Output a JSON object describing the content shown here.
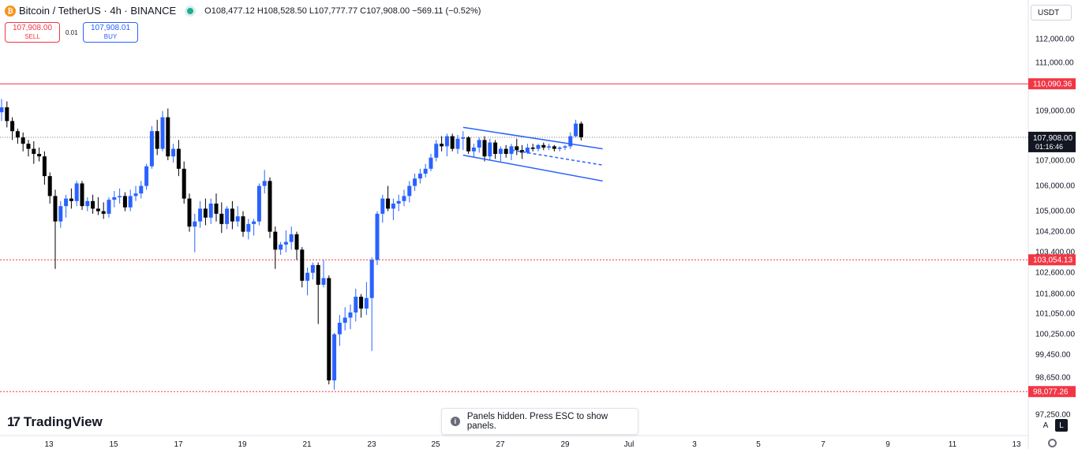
{
  "header": {
    "symbol_title": "Bitcoin / TetherUS · 4h · BINANCE",
    "coin_icon": "bitcoin-icon",
    "ohlc": "O108,477.12 H108,528.50 L107,777.77 C107,908.00 −569.11 (−0.52%)"
  },
  "trade": {
    "sell_price": "107,908.00",
    "sell_label": "SELL",
    "spread": "0.01",
    "buy_price": "107,908.01",
    "buy_label": "BUY"
  },
  "currency_selector": "USDT",
  "brand": "TradingView",
  "toast": {
    "icon": "info-icon",
    "text": "Panels hidden. Press ESC to show panels."
  },
  "axis_buttons": {
    "auto": "A",
    "log": "L"
  },
  "colors": {
    "up": "#2962ff",
    "down": "#000000",
    "level": "#f23645",
    "channel": "#2962ff"
  },
  "chart_data": {
    "type": "candlestick",
    "timeframe": "4h",
    "x_ticks": [
      "13",
      "15",
      "17",
      "19",
      "21",
      "23",
      "25",
      "27",
      "29",
      "Jul",
      "3",
      "5",
      "7",
      "9",
      "11",
      "13"
    ],
    "y_ticks": [
      "112,000.00",
      "111,000.00",
      "109,000.00",
      "107,000.00",
      "106,000.00",
      "105,000.00",
      "104,200.00",
      "103,400.00",
      "102,600.00",
      "101,800.00",
      "101,050.00",
      "100,250.00",
      "99,450.00",
      "98,650.00",
      "97,250.00"
    ],
    "price_labels": [
      {
        "value": "110,090.36",
        "style": "level"
      },
      {
        "value": "103,054.13",
        "style": "level"
      },
      {
        "value": "98,077.26",
        "style": "level"
      },
      {
        "value": "107,908.00",
        "countdown": "01:16:46",
        "style": "current"
      }
    ],
    "horizontal_levels": [
      {
        "price": 110090.36,
        "style": "solid"
      },
      {
        "price": 103054.13,
        "style": "dotted"
      },
      {
        "price": 98077.26,
        "style": "dotted"
      }
    ],
    "current_price": 107908.0,
    "candles": [
      [
        108900,
        109450,
        108550,
        109100
      ],
      [
        109100,
        109350,
        108300,
        108550
      ],
      [
        108550,
        108700,
        107800,
        108150
      ],
      [
        108150,
        108250,
        107650,
        107900
      ],
      [
        107900,
        108100,
        107350,
        107650
      ],
      [
        107650,
        107800,
        107150,
        107450
      ],
      [
        107450,
        107750,
        106850,
        107250
      ],
      [
        107250,
        107500,
        106950,
        107150
      ],
      [
        107150,
        107350,
        106000,
        106350
      ],
      [
        106350,
        106500,
        105250,
        105550
      ],
      [
        105550,
        105800,
        102700,
        104550
      ],
      [
        104550,
        105350,
        104300,
        105150
      ],
      [
        105150,
        105600,
        104700,
        105450
      ],
      [
        105450,
        105850,
        105050,
        105350
      ],
      [
        105350,
        106150,
        105150,
        106050
      ],
      [
        106050,
        106150,
        105000,
        105150
      ],
      [
        105150,
        105500,
        104950,
        105350
      ],
      [
        105350,
        105600,
        104850,
        105050
      ],
      [
        105050,
        105500,
        104800,
        104950
      ],
      [
        104950,
        105300,
        104650,
        104850
      ],
      [
        104850,
        105500,
        104700,
        105400
      ],
      [
        105400,
        105750,
        105100,
        105500
      ],
      [
        105500,
        105850,
        105250,
        105550
      ],
      [
        105550,
        105700,
        104950,
        105100
      ],
      [
        105100,
        105800,
        104950,
        105550
      ],
      [
        105550,
        105950,
        105350,
        105650
      ],
      [
        105650,
        106150,
        105450,
        105950
      ],
      [
        105950,
        106850,
        105800,
        106750
      ],
      [
        106750,
        108350,
        106650,
        108150
      ],
      [
        108150,
        108600,
        107200,
        107450
      ],
      [
        107450,
        108950,
        107350,
        108700
      ],
      [
        108700,
        109050,
        107000,
        107150
      ],
      [
        107150,
        107650,
        106900,
        107450
      ],
      [
        107450,
        107800,
        106350,
        106650
      ],
      [
        106650,
        106950,
        105250,
        105450
      ],
      [
        105450,
        105650,
        104150,
        104350
      ],
      [
        104350,
        104850,
        103350,
        104550
      ],
      [
        104550,
        105350,
        104300,
        105050
      ],
      [
        105050,
        105450,
        104400,
        104700
      ],
      [
        104700,
        105450,
        104450,
        105250
      ],
      [
        105250,
        105650,
        104550,
        104850
      ],
      [
        104850,
        105300,
        104100,
        104450
      ],
      [
        104450,
        105150,
        104250,
        105050
      ],
      [
        105050,
        105350,
        104250,
        104550
      ],
      [
        104550,
        105150,
        104350,
        104750
      ],
      [
        104750,
        104950,
        103950,
        104150
      ],
      [
        104150,
        104650,
        103850,
        104450
      ],
      [
        104450,
        104650,
        104000,
        104550
      ],
      [
        104550,
        106050,
        104400,
        105950
      ],
      [
        105950,
        106600,
        105650,
        106150
      ],
      [
        106150,
        106300,
        103900,
        104150
      ],
      [
        104150,
        104350,
        102700,
        103450
      ],
      [
        103450,
        103750,
        103250,
        103650
      ],
      [
        103650,
        104200,
        103350,
        103750
      ],
      [
        103750,
        104350,
        103450,
        104050
      ],
      [
        104050,
        104150,
        103050,
        103450
      ],
      [
        103450,
        103550,
        102000,
        102250
      ],
      [
        102250,
        102750,
        101700,
        102550
      ],
      [
        102550,
        102950,
        102300,
        102850
      ],
      [
        102850,
        102950,
        100600,
        102100
      ],
      [
        102100,
        103050,
        102000,
        102350
      ],
      [
        102350,
        102450,
        98350,
        98500
      ],
      [
        98500,
        100250,
        98150,
        100200
      ],
      [
        100200,
        100950,
        99750,
        100650
      ],
      [
        100650,
        101250,
        100350,
        100850
      ],
      [
        100850,
        101350,
        100400,
        101050
      ],
      [
        101050,
        101950,
        100700,
        101650
      ],
      [
        101650,
        101750,
        100850,
        101200
      ],
      [
        101200,
        102200,
        100950,
        101600
      ],
      [
        101600,
        103150,
        99550,
        103050
      ],
      [
        103050,
        104950,
        102850,
        104850
      ],
      [
        104850,
        105600,
        104500,
        105450
      ],
      [
        105450,
        105950,
        104950,
        105050
      ],
      [
        105050,
        105450,
        104600,
        105250
      ],
      [
        105250,
        105600,
        104950,
        105350
      ],
      [
        105350,
        105800,
        105150,
        105550
      ],
      [
        105550,
        106150,
        105300,
        105950
      ],
      [
        105950,
        106450,
        105750,
        106250
      ],
      [
        106250,
        106650,
        106050,
        106450
      ],
      [
        106450,
        106850,
        106300,
        106650
      ],
      [
        106650,
        107250,
        106550,
        107100
      ],
      [
        107100,
        107800,
        106950,
        107650
      ],
      [
        107650,
        107950,
        107350,
        107550
      ],
      [
        107550,
        108050,
        107150,
        107950
      ],
      [
        107950,
        108050,
        107350,
        107450
      ],
      [
        107450,
        108000,
        107250,
        107850
      ],
      [
        107850,
        108150,
        107400,
        107900
      ],
      [
        107900,
        107950,
        107250,
        107350
      ],
      [
        107350,
        107650,
        107100,
        107500
      ],
      [
        107500,
        107900,
        107300,
        107800
      ],
      [
        107800,
        107950,
        106950,
        107150
      ],
      [
        107150,
        107850,
        107000,
        107700
      ],
      [
        107700,
        107800,
        107050,
        107250
      ],
      [
        107250,
        107550,
        106950,
        107450
      ],
      [
        107450,
        107600,
        107100,
        107250
      ],
      [
        107250,
        107650,
        107000,
        107550
      ],
      [
        107550,
        107850,
        107200,
        107400
      ],
      [
        107400,
        107600,
        107050,
        107300
      ],
      [
        107300,
        107650,
        107250,
        107500
      ],
      [
        107500,
        107650,
        107350,
        107450
      ],
      [
        107450,
        107650,
        107350,
        107600
      ],
      [
        107600,
        107700,
        107400,
        107500
      ],
      [
        107500,
        107650,
        107400,
        107550
      ],
      [
        107550,
        107600,
        107350,
        107450
      ],
      [
        107450,
        107550,
        107350,
        107500
      ],
      [
        107500,
        107600,
        107400,
        107550
      ],
      [
        107550,
        108100,
        107450,
        107950
      ],
      [
        107950,
        108600,
        107900,
        108450
      ],
      [
        108450,
        108530,
        107780,
        107908
      ]
    ],
    "channel": {
      "upper": [
        [
          86,
          108300
        ],
        [
          112,
          107450
        ]
      ],
      "lower": [
        [
          86,
          107200
        ],
        [
          112,
          106150
        ]
      ],
      "mid_dashed": [
        [
          95,
          107400
        ],
        [
          112,
          106800
        ]
      ]
    }
  }
}
